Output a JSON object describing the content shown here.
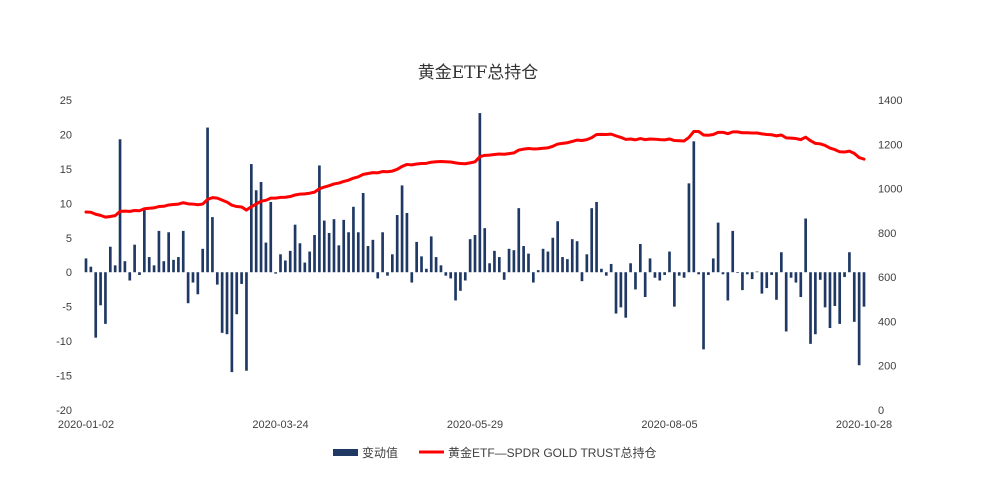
{
  "chart_data": {
    "type": "bar+line",
    "title": "黄金ETF总持仓",
    "colors": {
      "bar": "#1f3864",
      "line": "#ff0000"
    },
    "y_left": {
      "lim": [
        -20,
        25
      ],
      "ticks": [
        "25",
        "20",
        "15",
        "10",
        "5",
        "0",
        "-5",
        "-10",
        "-15",
        "-20"
      ]
    },
    "y_right": {
      "lim": [
        0,
        1400
      ],
      "ticks": [
        "1400",
        "1200",
        "1000",
        "800",
        "600",
        "400",
        "200",
        "0"
      ]
    },
    "x_tick_labels": [
      "2020-01-02",
      "2020-03-24",
      "2020-05-29",
      "2020-08-05",
      "2020-10-28"
    ],
    "x_tick_index": [
      0,
      40,
      80,
      120,
      160
    ],
    "legend": {
      "bar_label": "变动值",
      "line_label": "黄金ETF—SPDR GOLD TRUST总持仓"
    },
    "series": [
      {
        "name": "变动值",
        "kind": "bar",
        "values": [
          2.0,
          0.8,
          -9.5,
          -4.8,
          -7.5,
          3.7,
          1.0,
          19.3,
          1.6,
          -1.2,
          4.0,
          -0.4,
          9.2,
          2.2,
          1.0,
          6.0,
          1.6,
          5.8,
          1.8,
          2.2,
          6.0,
          -4.5,
          -1.5,
          -3.2,
          3.4,
          21.0,
          8.0,
          -1.8,
          -8.8,
          -9.0,
          -14.5,
          -6.1,
          -1.7,
          -14.3,
          15.7,
          11.9,
          13.1,
          4.3,
          10.2,
          -0.2,
          2.6,
          1.7,
          3.1,
          6.9,
          4.2,
          1.4,
          3.0,
          5.4,
          15.5,
          7.5,
          5.7,
          7.7,
          3.9,
          7.6,
          5.8,
          9.5,
          5.8,
          11.5,
          3.8,
          4.7,
          -0.9,
          5.8,
          -0.5,
          2.6,
          8.3,
          12.6,
          8.6,
          -1.5,
          4.4,
          2.3,
          0.5,
          5.2,
          2.2,
          1.0,
          -0.5,
          -0.9,
          -4.1,
          -2.7,
          -1.2,
          4.8,
          5.4,
          23.1,
          6.4,
          1.3,
          3.1,
          2.2,
          -1.1,
          3.4,
          3.2,
          9.3,
          3.8,
          2.7,
          -1.5,
          0.3,
          3.4,
          3.0,
          5.0,
          7.4,
          2.2,
          1.9,
          4.8,
          4.5,
          -1.3,
          2.6,
          9.3,
          10.2,
          0.5,
          -0.5,
          1.2,
          -6.0,
          -5.1,
          -6.6,
          1.3,
          -2.5,
          4.1,
          -3.6,
          2.0,
          -0.8,
          -1.2,
          -0.4,
          3.0,
          -5.0,
          -0.5,
          -0.8,
          12.9,
          19.0,
          -0.3,
          -11.2,
          -0.4,
          2.0,
          7.2,
          -0.3,
          -4.1,
          6.0,
          -0.1,
          -2.6,
          -0.3,
          -1.0,
          0.1,
          -3.1,
          -2.3,
          -0.4,
          -4.0,
          2.9,
          -8.6,
          -0.8,
          -1.5,
          -3.6,
          7.8,
          -10.4,
          -9.0,
          -1.1,
          -5.1,
          -8.1,
          -4.9,
          -7.5,
          -0.7,
          2.9,
          -7.2,
          -13.5,
          -5.0
        ]
      },
      {
        "name": "黄金ETF—SPDR GOLD TRUST总持仓",
        "kind": "line",
        "values": [
          894,
          893,
          884,
          879,
          871,
          874,
          878,
          897,
          898,
          897,
          901,
          900,
          909,
          911,
          913,
          919,
          920,
          926,
          928,
          930,
          936,
          931,
          930,
          927,
          930,
          951,
          959,
          957,
          948,
          939,
          925,
          919,
          917,
          903,
          918,
          930,
          943,
          947,
          957,
          957,
          960,
          961,
          964,
          971,
          975,
          976,
          979,
          984,
          999,
          1007,
          1013,
          1021,
          1025,
          1032,
          1038,
          1047,
          1053,
          1064,
          1068,
          1072,
          1071,
          1077,
          1076,
          1079,
          1087,
          1100,
          1109,
          1107,
          1111,
          1113,
          1114,
          1119,
          1121,
          1122,
          1121,
          1120,
          1116,
          1113,
          1112,
          1116,
          1121,
          1144,
          1150,
          1151,
          1154,
          1156,
          1155,
          1158,
          1161,
          1174,
          1178,
          1181,
          1179,
          1180,
          1182,
          1184,
          1191,
          1201,
          1204,
          1207,
          1213,
          1219,
          1217,
          1221,
          1230,
          1244,
          1245,
          1244,
          1246,
          1238,
          1231,
          1222,
          1224,
          1220,
          1226,
          1221,
          1224,
          1223,
          1221,
          1220,
          1224,
          1217,
          1216,
          1215,
          1231,
          1258,
          1258,
          1242,
          1241,
          1244,
          1254,
          1254,
          1248,
          1256,
          1256,
          1252,
          1252,
          1251,
          1251,
          1247,
          1244,
          1243,
          1238,
          1242,
          1229,
          1228,
          1226,
          1221,
          1232,
          1216,
          1204,
          1202,
          1195,
          1183,
          1176,
          1166,
          1165,
          1169,
          1159,
          1140,
          1133
        ]
      }
    ]
  }
}
